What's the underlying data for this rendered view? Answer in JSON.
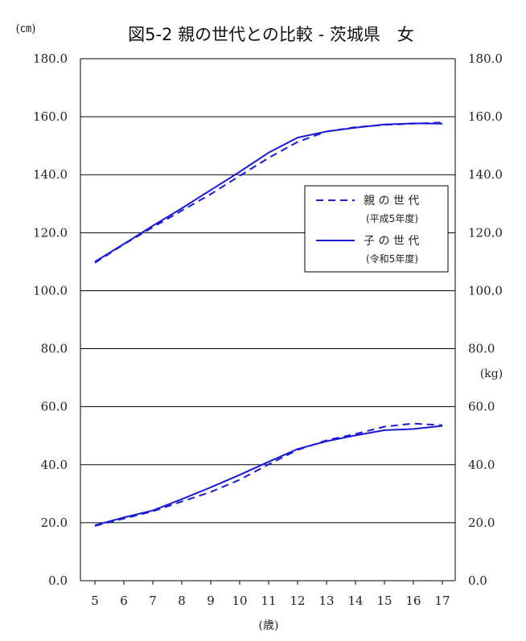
{
  "chart_data": {
    "type": "line",
    "title": "図5-2 親の世代との比較 - 茨城県　女",
    "left_unit": "(㎝)",
    "right_unit": "(kg)",
    "xlabel": "(歳)",
    "categories": [
      "5",
      "6",
      "7",
      "8",
      "9",
      "10",
      "11",
      "12",
      "13",
      "14",
      "15",
      "16",
      "17"
    ],
    "y_ticks": [
      "0.0",
      "20.0",
      "40.0",
      "60.0",
      "80.0",
      "100.0",
      "120.0",
      "140.0",
      "160.0",
      "180.0"
    ],
    "ylim": [
      0,
      180
    ],
    "grid": true,
    "legend_position": "right-middle",
    "legend": [
      {
        "name": "親 の 世 代",
        "sub": "(平成5年度)",
        "style": "dashed"
      },
      {
        "name": "子 の 世 代",
        "sub": "(令和5年度)",
        "style": "solid"
      }
    ],
    "series": [
      {
        "name": "親 の 世 代",
        "measure": "height",
        "style": "dashed",
        "values": [
          109.6,
          116.0,
          121.9,
          127.6,
          133.3,
          139.6,
          145.8,
          151.3,
          154.9,
          156.4,
          157.2,
          157.6,
          158.0
        ]
      },
      {
        "name": "子 の 世 代",
        "measure": "height",
        "style": "solid",
        "values": [
          110.0,
          116.1,
          122.4,
          128.4,
          134.7,
          141.0,
          147.6,
          152.8,
          154.9,
          156.2,
          157.3,
          157.7,
          157.6
        ]
      },
      {
        "name": "親 の 世 代",
        "measure": "weight",
        "style": "dashed",
        "values": [
          18.9,
          21.4,
          23.9,
          27.3,
          30.6,
          34.8,
          40.1,
          45.1,
          48.4,
          50.6,
          53.1,
          54.2,
          53.6
        ]
      },
      {
        "name": "子 の 世 代",
        "measure": "weight",
        "style": "solid",
        "values": [
          19.1,
          21.8,
          24.2,
          28.1,
          32.2,
          36.5,
          41.0,
          45.4,
          48.1,
          50.1,
          51.9,
          52.3,
          53.4
        ]
      }
    ],
    "colors": {
      "line": "#1a1ad6",
      "grid": "#000000",
      "axis": "#000000"
    }
  }
}
